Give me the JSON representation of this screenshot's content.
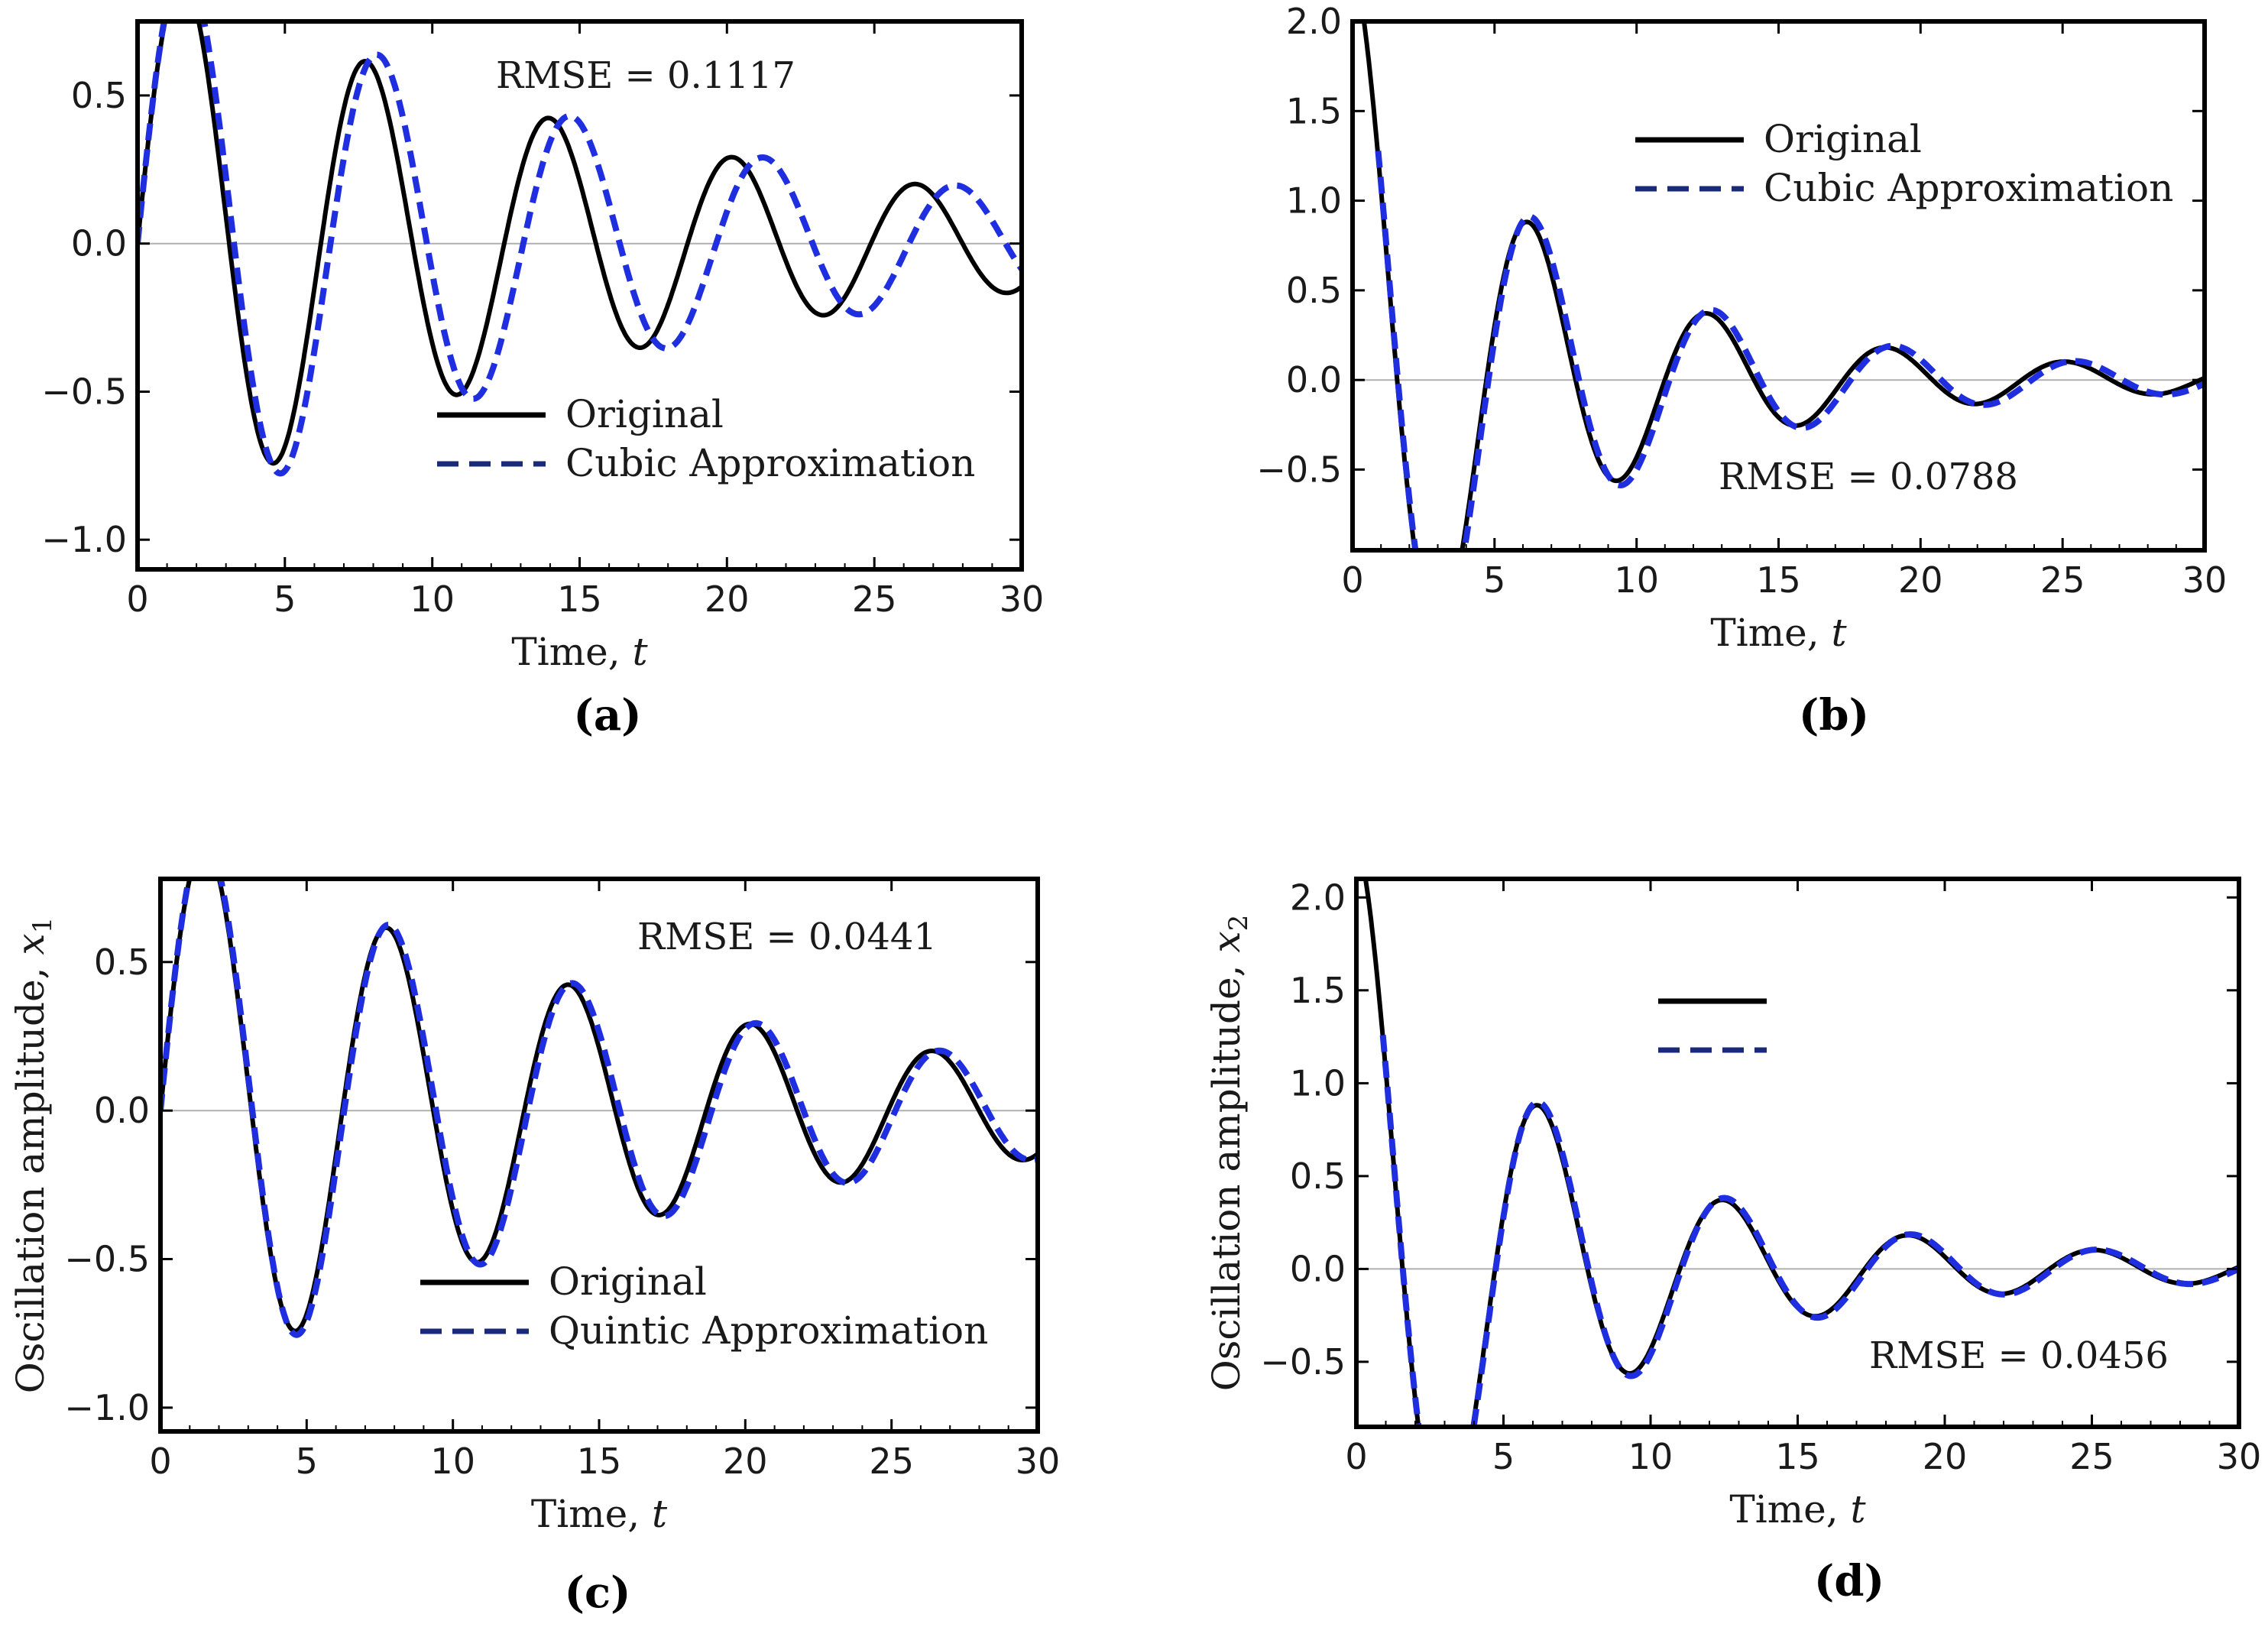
{
  "figure": {
    "colors": {
      "original": "#000000",
      "approx": "#1f2fe0",
      "approx_legend": "#1a2a7a",
      "zero_line": "#b0b0b0",
      "frame": "#000000"
    }
  },
  "chart_data": [
    {
      "id": "a",
      "type": "line",
      "panel_label": "(a)",
      "xlabel_text": "Time, ",
      "xlabel_var": "t",
      "ylabel_text": "",
      "ylabel_var": "",
      "ylabel_sub": "",
      "xlim": [
        0,
        30
      ],
      "ylim": [
        -1.1,
        0.75
      ],
      "xticks": [
        0,
        5,
        10,
        15,
        20,
        25,
        30
      ],
      "xtick_labels": [
        "0",
        "5",
        "10",
        "15",
        "20",
        "25",
        "30"
      ],
      "yticks": [
        -1.0,
        -0.5,
        0.0,
        0.5
      ],
      "ytick_labels": [
        "−1.0",
        "−0.5",
        "0.0",
        "0.5"
      ],
      "rmse_text": "RMSE = 0.1117",
      "legend_placement": "lower-right",
      "legend": [
        {
          "series": "original",
          "label": "Original"
        },
        {
          "series": "approx",
          "label": "Cubic Approximation"
        }
      ],
      "series": [
        {
          "name": "original",
          "style": "solid",
          "model": {
            "form": "sin",
            "amplitude": 0.98,
            "decay": 0.06,
            "omega": 1.01,
            "phase": 0,
            "t_end": 30
          }
        },
        {
          "name": "approx",
          "style": "dashed",
          "model": {
            "form": "sin",
            "amplitude": 1.04,
            "decay": 0.06,
            "omega": 0.96,
            "phase": 0,
            "t_end": 30
          }
        }
      ]
    },
    {
      "id": "b",
      "type": "line",
      "panel_label": "(b)",
      "xlabel_text": "Time, ",
      "xlabel_var": "t",
      "ylabel_text": "",
      "ylabel_var": "",
      "ylabel_sub": "",
      "xlim": [
        0,
        30
      ],
      "ylim": [
        -0.95,
        2.0
      ],
      "xticks": [
        0,
        5,
        10,
        15,
        20,
        25,
        30
      ],
      "xtick_labels": [
        "0",
        "5",
        "10",
        "15",
        "20",
        "25",
        "30"
      ],
      "yticks": [
        -0.5,
        0.0,
        0.5,
        1.0,
        1.5,
        2.0
      ],
      "ytick_labels": [
        "−0.5",
        "0.0",
        "0.5",
        "1.0",
        "1.5",
        "2.0"
      ],
      "rmse_text": "RMSE = 0.0788",
      "legend_placement": "upper-right",
      "legend": [
        {
          "series": "original",
          "label": "Original"
        },
        {
          "series": "approx",
          "label": "Cubic Approximation"
        }
      ],
      "series": [
        {
          "name": "original",
          "style": "solid",
          "model": {
            "form": "cos",
            "amplitude": 2.0,
            "decay": 0.18,
            "omega": 1.0,
            "floor": 0.06,
            "floor_decay": 0.055,
            "t_end": 30
          }
        },
        {
          "name": "approx",
          "style": "dashed",
          "model": {
            "form": "cos",
            "amplitude": 2.0,
            "decay": 0.17,
            "omega": 0.985,
            "floor": 0.06,
            "floor_decay": 0.055,
            "t_start": 0.9,
            "t_end": 30
          }
        }
      ]
    },
    {
      "id": "c",
      "type": "line",
      "panel_label": "(c)",
      "xlabel_text": "Time, ",
      "xlabel_var": "t",
      "ylabel_text": "Oscillation amplitude, ",
      "ylabel_var": "x",
      "ylabel_sub": "1",
      "xlim": [
        0,
        30
      ],
      "ylim": [
        -1.08,
        0.78
      ],
      "xticks": [
        0,
        5,
        10,
        15,
        20,
        25,
        30
      ],
      "xtick_labels": [
        "0",
        "5",
        "10",
        "15",
        "20",
        "25",
        "30"
      ],
      "yticks": [
        -1.0,
        -0.5,
        0.0,
        0.5
      ],
      "ytick_labels": [
        "−1.0",
        "−0.5",
        "0.0",
        "0.5"
      ],
      "rmse_text": "RMSE = 0.0441",
      "legend_placement": "lower-right",
      "legend": [
        {
          "series": "original",
          "label": "Original"
        },
        {
          "series": "approx",
          "label": "Quintic Approximation"
        }
      ],
      "series": [
        {
          "name": "original",
          "style": "solid",
          "model": {
            "form": "sin",
            "amplitude": 0.98,
            "decay": 0.06,
            "omega": 1.01,
            "phase": 0,
            "t_end": 30
          }
        },
        {
          "name": "approx",
          "style": "dashed",
          "model": {
            "form": "sin",
            "amplitude": 1.0,
            "decay": 0.06,
            "omega": 1.0,
            "phase": 0,
            "t_end": 30
          }
        }
      ]
    },
    {
      "id": "d",
      "type": "line",
      "panel_label": "(d)",
      "xlabel_text": "Time, ",
      "xlabel_var": "t",
      "ylabel_text": "Oscillation amplitude, ",
      "ylabel_var": "x",
      "ylabel_sub": "2",
      "xlim": [
        0,
        30
      ],
      "ylim": [
        -0.85,
        2.1
      ],
      "xticks": [
        0,
        5,
        10,
        15,
        20,
        25,
        30
      ],
      "xtick_labels": [
        "0",
        "5",
        "10",
        "15",
        "20",
        "25",
        "30"
      ],
      "yticks": [
        -0.5,
        0.0,
        0.5,
        1.0,
        1.5,
        2.0
      ],
      "ytick_labels": [
        "−0.5",
        "0.0",
        "0.5",
        "1.0",
        "1.5",
        "2.0"
      ],
      "rmse_text": "RMSE = 0.0456",
      "legend_placement": "upper-center",
      "legend": [
        {
          "series": "original",
          "label": ""
        },
        {
          "series": "approx",
          "label": ""
        }
      ],
      "series": [
        {
          "name": "original",
          "style": "solid",
          "model": {
            "form": "cos",
            "amplitude": 2.0,
            "decay": 0.18,
            "omega": 1.0,
            "floor": 0.06,
            "floor_decay": 0.055,
            "t_end": 30
          }
        },
        {
          "name": "approx",
          "style": "dashed",
          "model": {
            "form": "cos",
            "amplitude": 2.0,
            "decay": 0.175,
            "omega": 0.995,
            "floor": 0.06,
            "floor_decay": 0.055,
            "t_start": 0.9,
            "t_end": 30
          }
        }
      ]
    }
  ]
}
